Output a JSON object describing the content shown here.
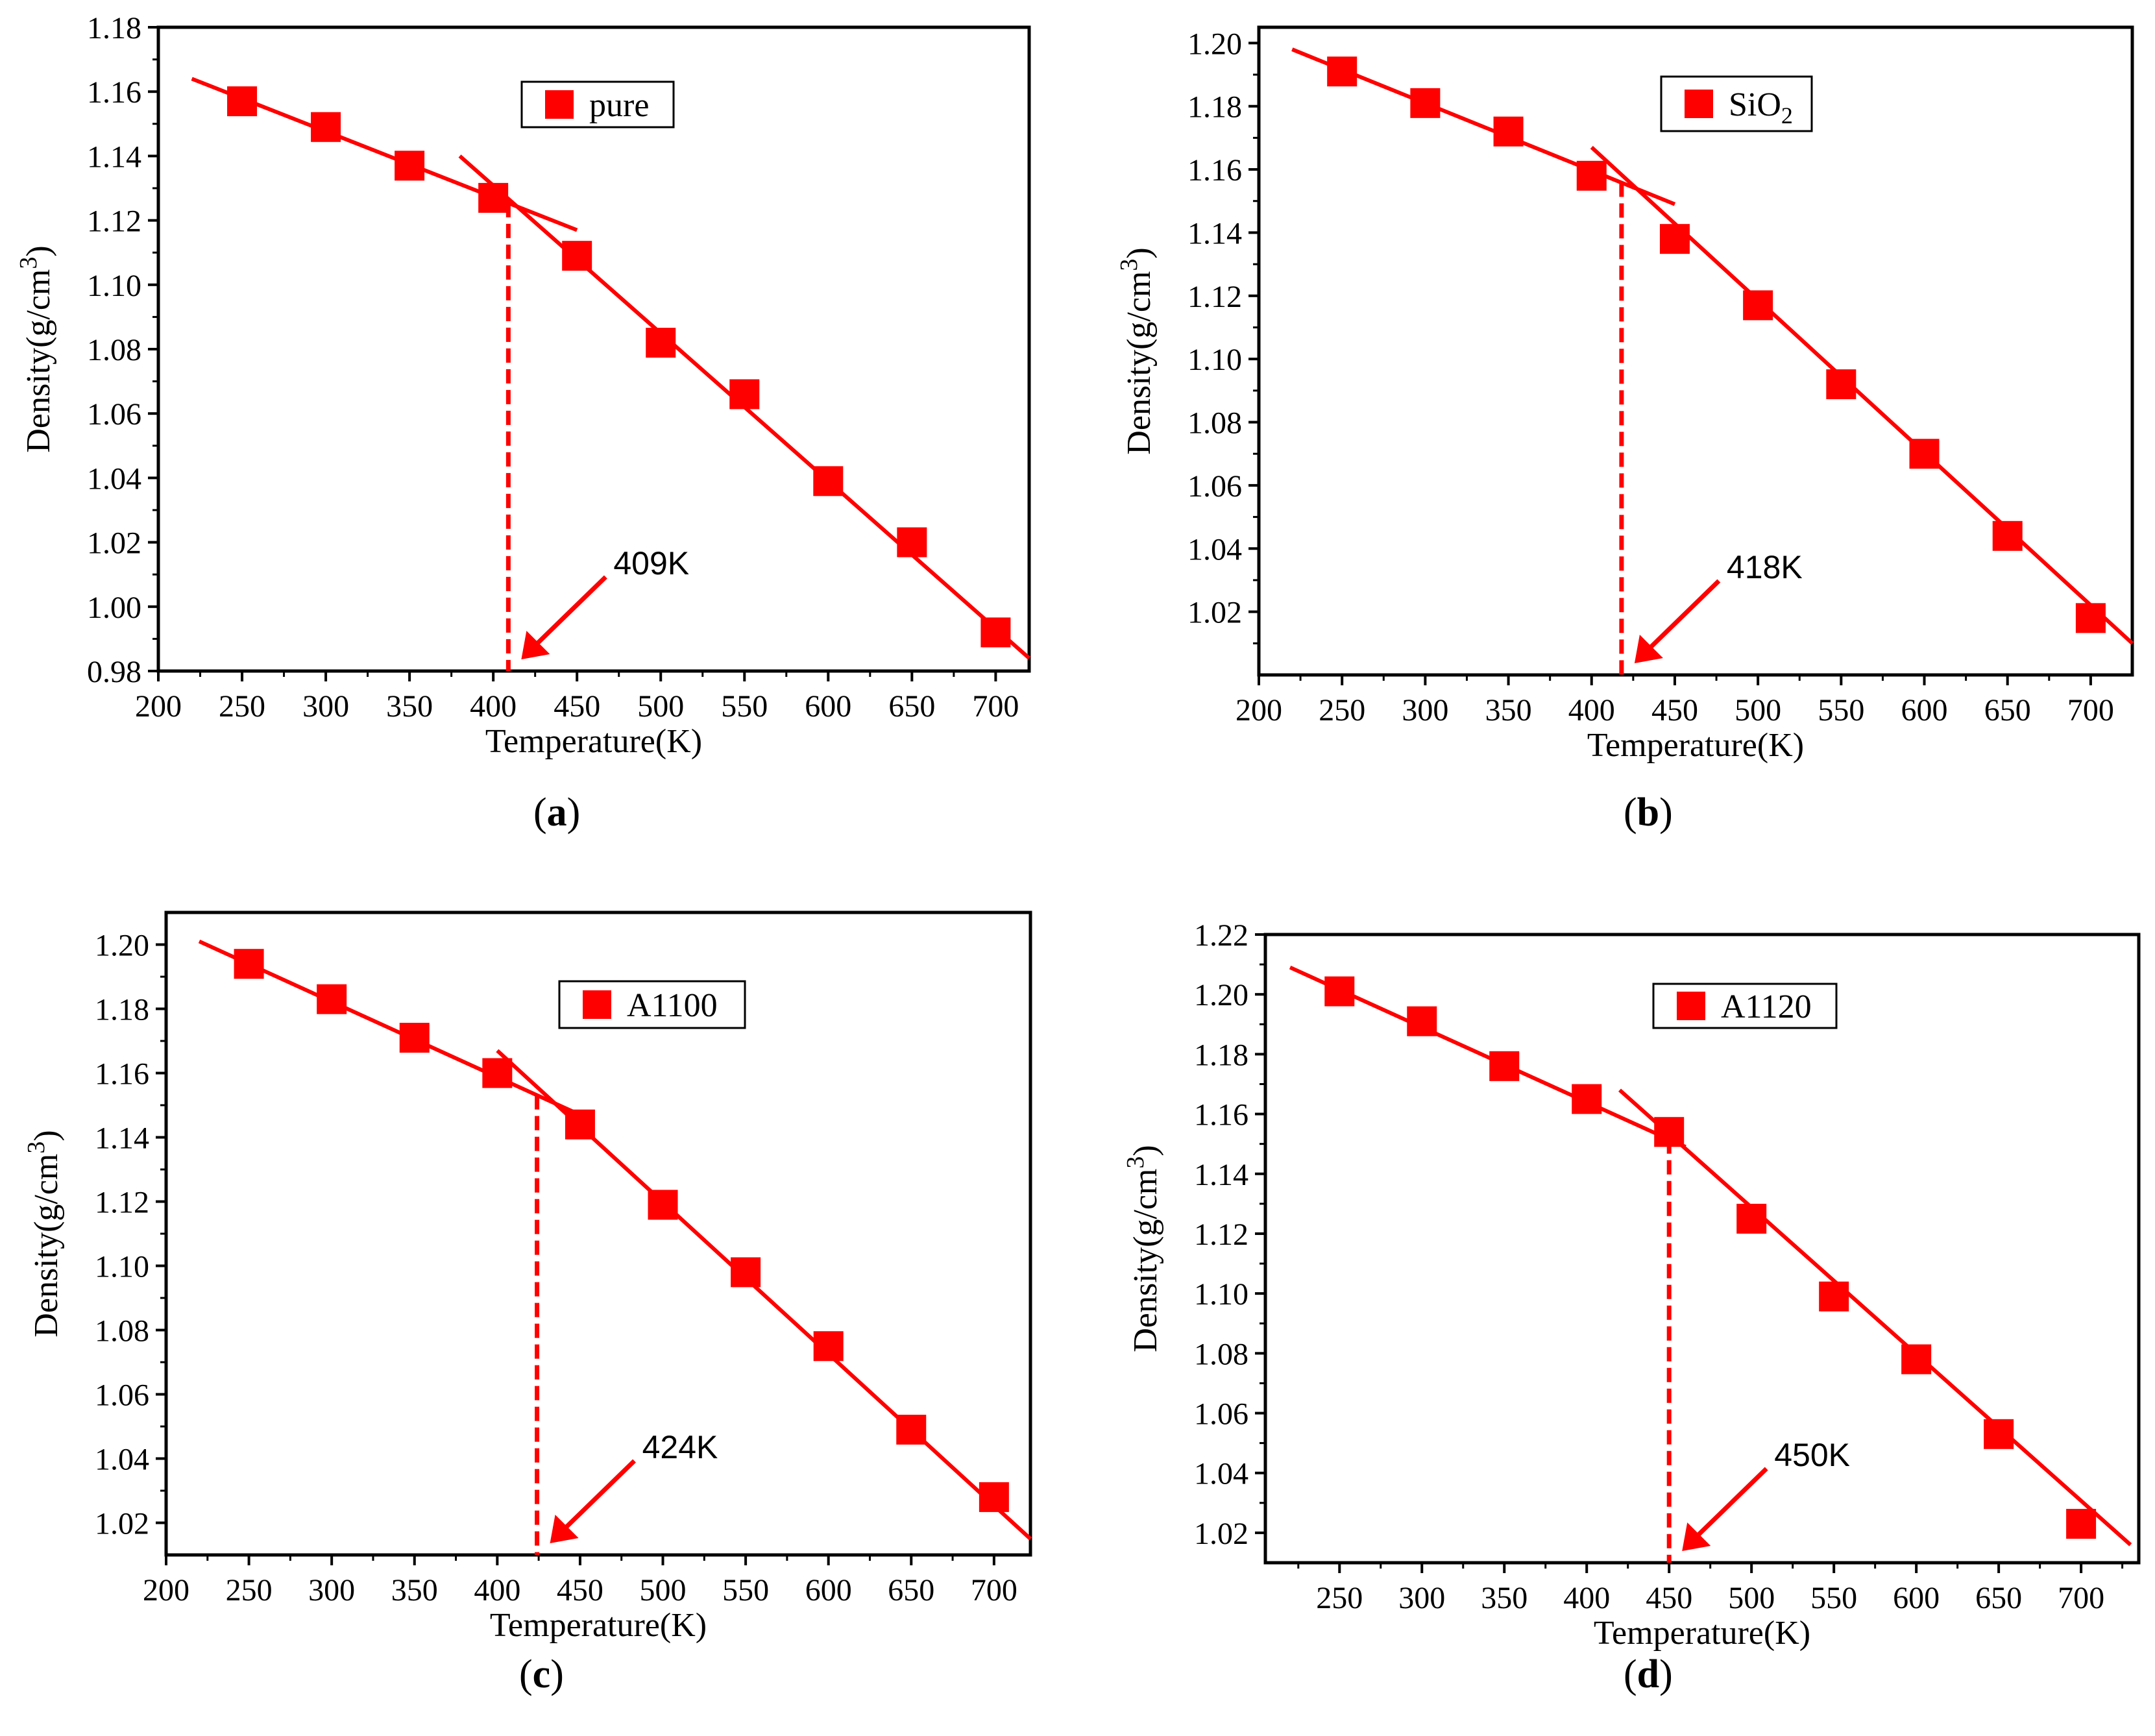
{
  "colors": {
    "series": "#ff0000",
    "axis": "#000000"
  },
  "chart_data": [
    {
      "type": "scatter",
      "panel_label": "a",
      "legend": {
        "name": "pure",
        "position": "top-center",
        "subscript": ""
      },
      "xlabel": "Temperature(K)",
      "ylabel": "Density(g/cm3)",
      "ylabel_parts": {
        "main": "Density(g/cm",
        "sup": "3",
        "close": ")"
      },
      "xlim": [
        200,
        720
      ],
      "ylim": [
        0.98,
        1.18
      ],
      "xticks": [
        200,
        250,
        300,
        350,
        400,
        450,
        500,
        550,
        600,
        650,
        700
      ],
      "yticks": [
        0.98,
        1.0,
        1.02,
        1.04,
        1.06,
        1.08,
        1.1,
        1.12,
        1.14,
        1.16,
        1.18
      ],
      "ytick_decimals": 2,
      "x": [
        250,
        300,
        350,
        400,
        450,
        500,
        550,
        600,
        650,
        700
      ],
      "y": [
        1.157,
        1.149,
        1.137,
        1.127,
        1.109,
        1.082,
        1.066,
        1.039,
        1.02,
        0.992
      ],
      "fit_low": {
        "x": [
          220,
          450
        ],
        "y": [
          1.164,
          1.117
        ]
      },
      "fit_high": {
        "x": [
          380,
          720
        ],
        "y": [
          1.14,
          0.984
        ]
      },
      "transition": {
        "x": 409,
        "label": "409K"
      }
    },
    {
      "type": "scatter",
      "panel_label": "b",
      "legend": {
        "name": "SiO",
        "position": "top-right",
        "subscript": "2"
      },
      "xlabel": "Temperature(K)",
      "ylabel": "Density(g/cm3)",
      "ylabel_parts": {
        "main": "Density(g/cm",
        "sup": "3",
        "close": ")"
      },
      "xlim": [
        200,
        725
      ],
      "ylim": [
        1.0,
        1.205
      ],
      "xticks": [
        200,
        250,
        300,
        350,
        400,
        450,
        500,
        550,
        600,
        650,
        700
      ],
      "yticks": [
        1.02,
        1.04,
        1.06,
        1.08,
        1.1,
        1.12,
        1.14,
        1.16,
        1.18,
        1.2
      ],
      "ytick_decimals": 2,
      "x": [
        250,
        300,
        350,
        400,
        450,
        500,
        550,
        600,
        650,
        700
      ],
      "y": [
        1.191,
        1.181,
        1.172,
        1.158,
        1.138,
        1.117,
        1.092,
        1.07,
        1.044,
        1.018
      ],
      "fit_low": {
        "x": [
          220,
          450
        ],
        "y": [
          1.198,
          1.149
        ]
      },
      "fit_high": {
        "x": [
          400,
          725
        ],
        "y": [
          1.167,
          1.01
        ]
      },
      "transition": {
        "x": 418,
        "label": "418K"
      }
    },
    {
      "type": "scatter",
      "panel_label": "c",
      "legend": {
        "name": "A1100",
        "position": "top-center",
        "subscript": ""
      },
      "xlabel": "Temperature(K)",
      "ylabel": "Density(g/cm3)",
      "ylabel_parts": {
        "main": "Density(g/cm",
        "sup": "3",
        "close": ")"
      },
      "xlim": [
        200,
        722
      ],
      "ylim": [
        1.01,
        1.21
      ],
      "xticks": [
        200,
        250,
        300,
        350,
        400,
        450,
        500,
        550,
        600,
        650,
        700
      ],
      "yticks": [
        1.02,
        1.04,
        1.06,
        1.08,
        1.1,
        1.12,
        1.14,
        1.16,
        1.18,
        1.2
      ],
      "ytick_decimals": 2,
      "x": [
        250,
        300,
        350,
        400,
        450,
        500,
        550,
        600,
        650,
        700
      ],
      "y": [
        1.194,
        1.183,
        1.171,
        1.16,
        1.144,
        1.119,
        1.098,
        1.075,
        1.049,
        1.028
      ],
      "fit_low": {
        "x": [
          220,
          450
        ],
        "y": [
          1.201,
          1.147
        ]
      },
      "fit_high": {
        "x": [
          400,
          722
        ],
        "y": [
          1.167,
          1.015
        ]
      },
      "transition": {
        "x": 424,
        "label": "424K"
      }
    },
    {
      "type": "scatter",
      "panel_label": "d",
      "legend": {
        "name": "A1120",
        "position": "top-right",
        "subscript": ""
      },
      "xlabel": "Temperature(K)",
      "ylabel": "Density(g/cm3)",
      "ylabel_parts": {
        "main": "Density(g/cm",
        "sup": "3",
        "close": ")"
      },
      "xlim": [
        205,
        735
      ],
      "ylim": [
        1.01,
        1.22
      ],
      "xticks": [
        250,
        300,
        350,
        400,
        450,
        500,
        550,
        600,
        650,
        700
      ],
      "yticks": [
        1.02,
        1.04,
        1.06,
        1.08,
        1.1,
        1.12,
        1.14,
        1.16,
        1.18,
        1.2,
        1.22
      ],
      "ytick_decimals": 2,
      "x": [
        250,
        300,
        350,
        400,
        450,
        500,
        550,
        600,
        650,
        700
      ],
      "y": [
        1.201,
        1.191,
        1.176,
        1.165,
        1.154,
        1.125,
        1.099,
        1.078,
        1.053,
        1.023
      ],
      "fit_low": {
        "x": [
          220,
          460
        ],
        "y": [
          1.209,
          1.149
        ]
      },
      "fit_high": {
        "x": [
          420,
          730
        ],
        "y": [
          1.168,
          1.016
        ]
      },
      "transition": {
        "x": 450,
        "label": "450K"
      }
    }
  ]
}
